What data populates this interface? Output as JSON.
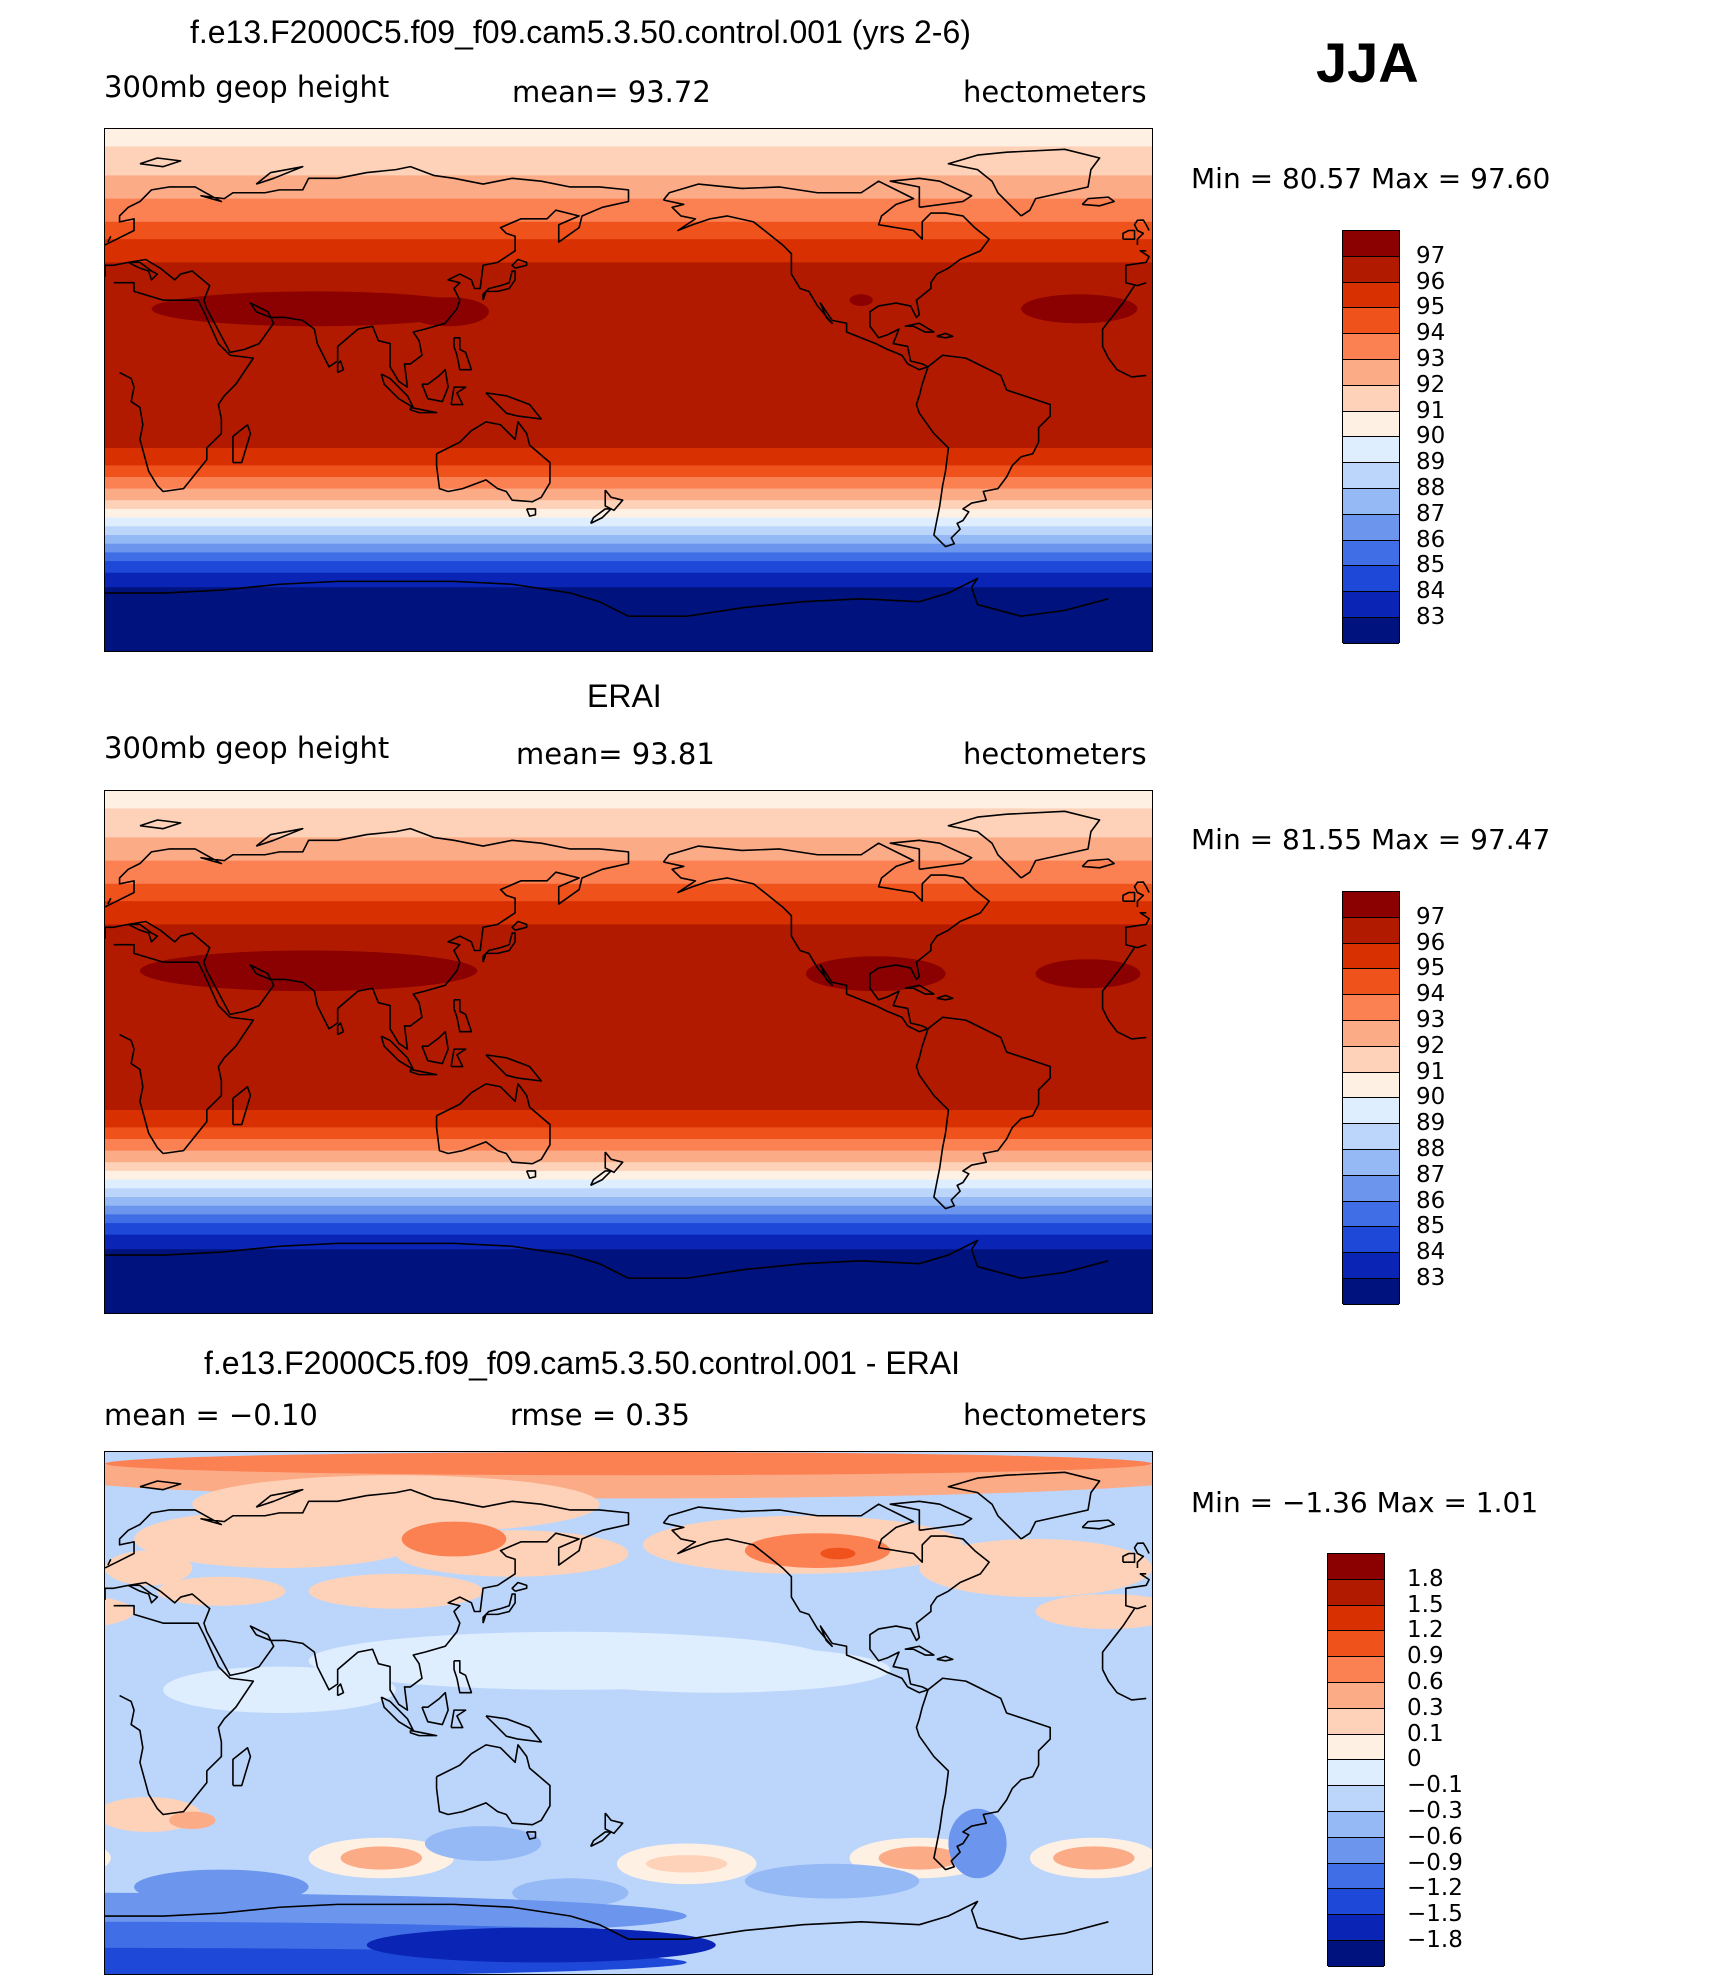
{
  "season": "JJA",
  "units": "hectometers",
  "panels": [
    {
      "title": "f.e13.F2000C5.f09_f09.cam5.3.50.control.001 (yrs 2-6)",
      "left_label": "300mb  geop  height",
      "center_label": "mean=   93.72",
      "right_label": "hectometers",
      "minmax": "Min  =    80.57  Max  =    97.60",
      "kind": "field"
    },
    {
      "title": "ERAI",
      "left_label": "300mb  geop  height",
      "center_label": "mean=   93.81",
      "right_label": "hectometers",
      "minmax": "Min  =    81.55  Max  =    97.47",
      "kind": "field"
    },
    {
      "title": "f.e13.F2000C5.f09_f09.cam5.3.50.control.001 - ERAI",
      "left_label": "mean  =    −0.10",
      "center_label": "rmse  =     0.35",
      "right_label": "hectometers",
      "minmax": "Min  =    −1.36  Max  =     1.01",
      "kind": "diff"
    }
  ],
  "colorbars": {
    "field": {
      "labels": [
        "97",
        "96",
        "95",
        "94",
        "93",
        "92",
        "91",
        "90",
        "89",
        "88",
        "87",
        "86",
        "85",
        "84",
        "83"
      ],
      "colors": [
        "#8b0000",
        "#b21a00",
        "#d83000",
        "#f0521c",
        "#fb8052",
        "#fcab87",
        "#fed2b8",
        "#fff0e4",
        "#dfeeff",
        "#bcd6fb",
        "#95b9f5",
        "#6c96ee",
        "#3f6ee6",
        "#1e48d8",
        "#0a24b6",
        "#00127e"
      ]
    },
    "diff": {
      "labels": [
        "1.8",
        "1.5",
        "1.2",
        "0.9",
        "0.6",
        "0.3",
        "0.1",
        "0",
        "−0.1",
        "−0.3",
        "−0.6",
        "−0.9",
        "−1.2",
        "−1.5",
        "−1.8"
      ],
      "colors": [
        "#8b0000",
        "#b21a00",
        "#d83000",
        "#f0521c",
        "#fb8052",
        "#fcab87",
        "#fed2b8",
        "#fff0e4",
        "#dfeeff",
        "#bcd6fb",
        "#95b9f5",
        "#6c96ee",
        "#3f6ee6",
        "#1e48d8",
        "#0a24b6",
        "#00127e"
      ]
    }
  }
}
